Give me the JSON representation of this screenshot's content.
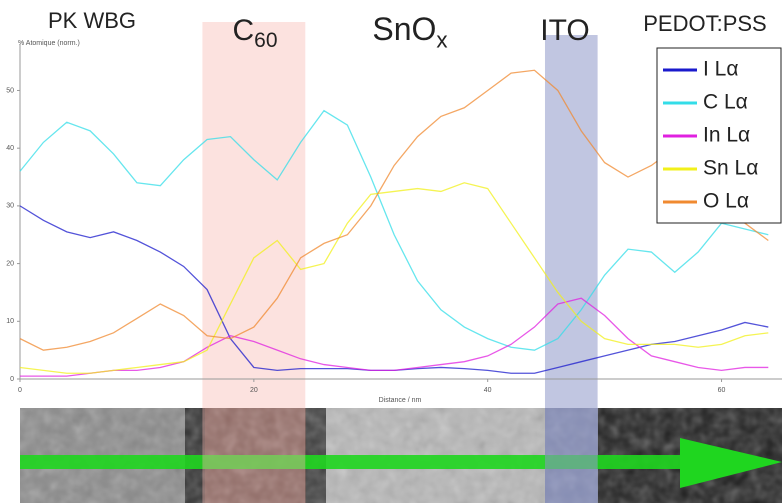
{
  "chart_data": {
    "type": "line",
    "y_label": "% Atomique (norm.)",
    "x_label": "Distance / nm",
    "layers": [
      {
        "name": "PK WBG"
      },
      {
        "name": "C",
        "sub": "60"
      },
      {
        "name": "SnO",
        "sub": "x"
      },
      {
        "name": "ITO"
      },
      {
        "name": "PEDOT:PSS"
      }
    ],
    "highlights": [
      {
        "xlim": [
          15.6,
          24.4
        ],
        "color": "#f7b7b0"
      },
      {
        "xlim": [
          44.9,
          49.4
        ],
        "color": "#8e97c8"
      }
    ],
    "x": [
      0,
      2,
      4,
      6,
      8,
      10,
      12,
      14,
      16,
      18,
      20,
      22,
      24,
      26,
      28,
      30,
      32,
      34,
      36,
      38,
      40,
      42,
      44,
      46,
      48,
      50,
      52,
      54,
      56,
      58,
      60,
      62,
      64
    ],
    "series": [
      {
        "name": "I Lα",
        "color": "#1a1acc",
        "values": [
          30,
          27.5,
          25.5,
          24.5,
          25.5,
          24,
          22,
          19.5,
          15.5,
          7,
          2,
          1.5,
          1.8,
          1.8,
          1.8,
          1.5,
          1.5,
          1.8,
          2,
          1.8,
          1.5,
          1,
          1,
          2,
          3,
          4,
          5,
          6,
          6.5,
          7.5,
          8.5,
          9.8,
          9
        ]
      },
      {
        "name": "C Lα",
        "color": "#33dde8",
        "values": [
          36,
          41,
          44.5,
          43,
          39,
          34,
          33.5,
          38,
          41.5,
          42,
          38,
          34.5,
          41,
          46.5,
          44,
          35,
          25,
          17,
          12,
          9,
          7,
          5.5,
          5,
          7,
          12,
          18,
          22.5,
          22,
          18.5,
          22,
          27,
          26,
          25
        ]
      },
      {
        "name": "In Lα",
        "color": "#e020e0",
        "values": [
          0.5,
          0.5,
          0.5,
          1,
          1.5,
          1.5,
          2,
          3,
          5.5,
          7.5,
          6.5,
          5,
          3.5,
          2.5,
          2,
          1.5,
          1.5,
          2,
          2.5,
          3,
          4,
          6,
          9,
          13,
          14,
          11,
          7,
          4,
          3,
          2,
          1.5,
          2,
          2
        ]
      },
      {
        "name": "Sn Lα",
        "color": "#f2f01a",
        "values": [
          2,
          1.5,
          1,
          1,
          1.5,
          2,
          2.5,
          3,
          5,
          13,
          21,
          24,
          19,
          20,
          27,
          32,
          32.5,
          33,
          32.5,
          34,
          33,
          27,
          21,
          15,
          10,
          7,
          6,
          6,
          6,
          5.5,
          6,
          7.5,
          8
        ]
      },
      {
        "name": "O Lα",
        "color": "#f08a30",
        "values": [
          7,
          5,
          5.5,
          6.5,
          8,
          10.5,
          13,
          11,
          7.5,
          7,
          9,
          14,
          21,
          23.5,
          25,
          30,
          37,
          42,
          45.5,
          47,
          50,
          53,
          53.5,
          50,
          43,
          37.5,
          35,
          37,
          40,
          34,
          30,
          27,
          24
        ]
      }
    ],
    "xlim": [
      0,
      65
    ],
    "ylim": [
      0,
      58
    ],
    "xticks": [
      0,
      20,
      40,
      60
    ],
    "yticks": [
      0,
      10,
      20,
      30,
      40,
      50
    ],
    "legend": "upper right"
  }
}
